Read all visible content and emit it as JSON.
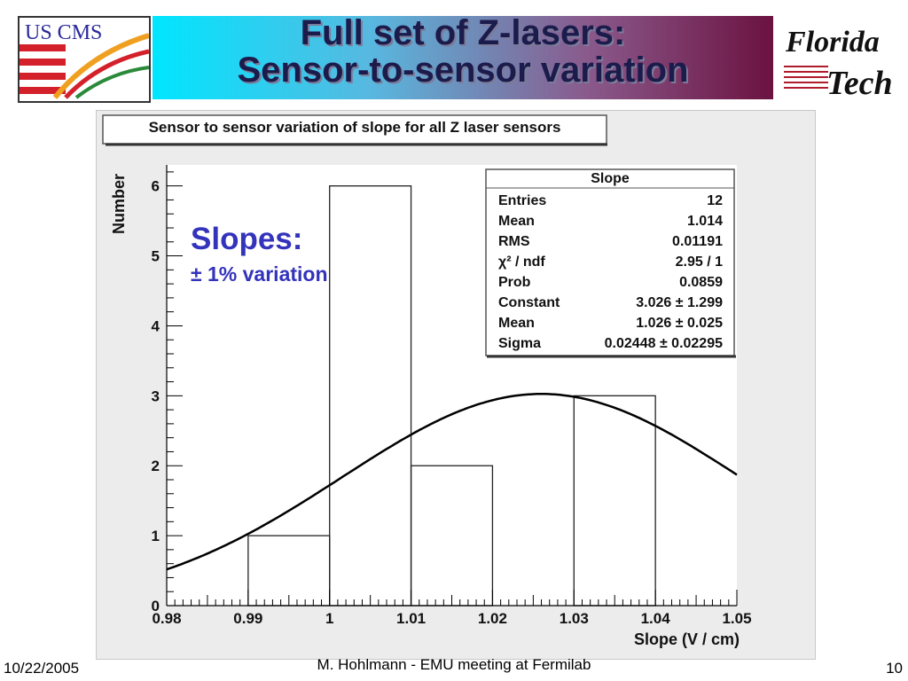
{
  "slide": {
    "title_line1": "Full set of Z-lasers:",
    "title_line2": "Sensor-to-sensor variation",
    "overlay_title": "Slopes:",
    "overlay_sub": "± 1% variation",
    "footer_date": "10/22/2005",
    "footer_center": "M. Hohlmann - EMU meeting at Fermilab",
    "footer_page": "10",
    "logo_left_text": "US CMS",
    "logo_right_line1": "Florida",
    "logo_right_line2": "Tech"
  },
  "colors": {
    "overlay_text": "#3333bb",
    "title_text": "#1c1c4c",
    "banner_start": "#00e6ff",
    "banner_end": "#6b1240"
  },
  "chart_data": {
    "type": "bar",
    "title": "Sensor to sensor variation of slope for all Z laser sensors",
    "xlabel": "Slope (V / cm)",
    "ylabel": "Number",
    "xlim": [
      0.98,
      1.05
    ],
    "ylim": [
      0,
      6.3
    ],
    "x_ticks": [
      "0.98",
      "0.99",
      "1",
      "1.01",
      "1.02",
      "1.03",
      "1.04",
      "1.05"
    ],
    "y_ticks": [
      "0",
      "1",
      "2",
      "3",
      "4",
      "5",
      "6"
    ],
    "bins": [
      {
        "low": 0.99,
        "high": 1.0,
        "count": 1
      },
      {
        "low": 1.0,
        "high": 1.01,
        "count": 6
      },
      {
        "low": 1.01,
        "high": 1.02,
        "count": 2
      },
      {
        "low": 1.02,
        "high": 1.03,
        "count": 0
      },
      {
        "low": 1.03,
        "high": 1.04,
        "count": 3
      }
    ],
    "fit": {
      "type": "gaussian",
      "constant": 3.026,
      "mean": 1.026,
      "sigma": 0.02448
    },
    "stats_box": {
      "title": "Slope",
      "rows": [
        {
          "label": "Entries",
          "value": "12"
        },
        {
          "label": "Mean",
          "value": "1.014"
        },
        {
          "label": "RMS",
          "value": "0.01191"
        },
        {
          "label": "χ² / ndf",
          "value": "2.95 / 1"
        },
        {
          "label": "Prob",
          "value": "0.0859"
        },
        {
          "label": "Constant",
          "value": "3.026 ± 1.299"
        },
        {
          "label": "Mean",
          "value": "1.026 ± 0.025"
        },
        {
          "label": "Sigma",
          "value": "0.02448 ± 0.02295"
        }
      ]
    }
  }
}
